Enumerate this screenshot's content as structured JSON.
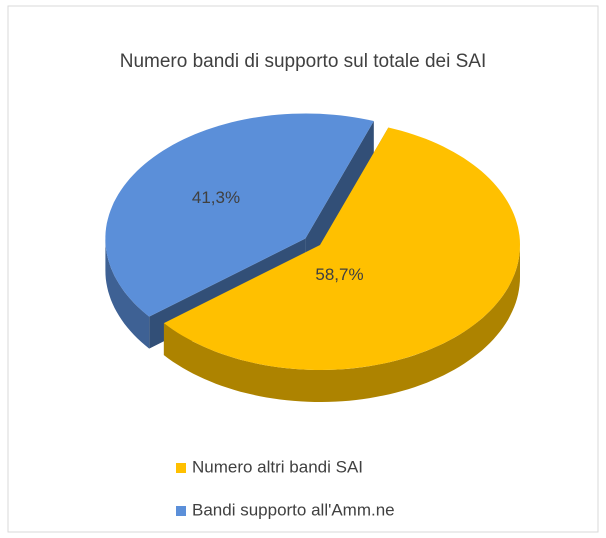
{
  "chart_data": {
    "type": "pie3d",
    "title": "Numero bandi di supporto sul totale dei SAI",
    "categories": [
      "Numero altri bandi SAI",
      "Bandi supporto all'Amm.ne"
    ],
    "values": [
      58.7,
      41.3
    ],
    "value_labels": [
      "58,7%",
      "41,3%"
    ],
    "colors": [
      "#ffc000",
      "#5b8fd9"
    ],
    "legend": "bottom"
  }
}
